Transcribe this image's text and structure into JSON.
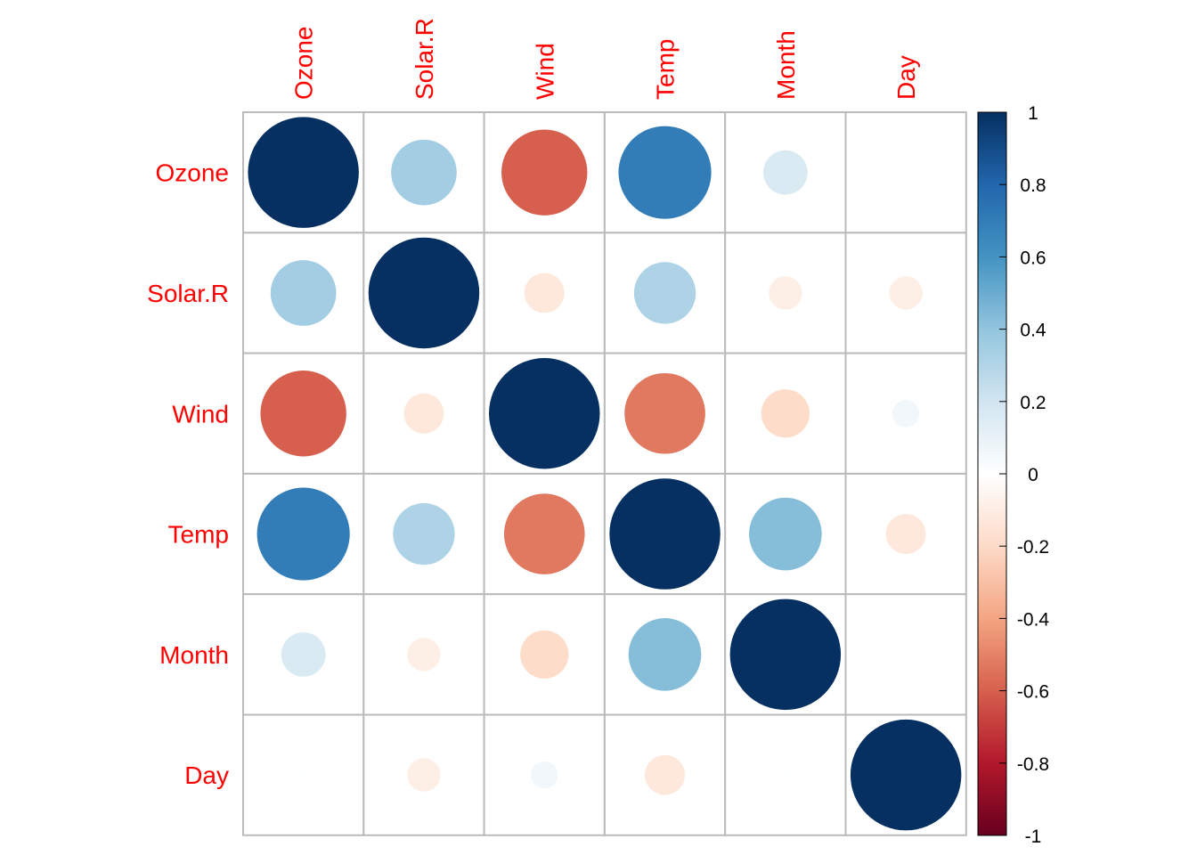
{
  "chart_data": {
    "type": "heatmap",
    "variables": [
      "Ozone",
      "Solar.R",
      "Wind",
      "Temp",
      "Month",
      "Day"
    ],
    "matrix": [
      [
        1.0,
        0.35,
        -0.6,
        0.7,
        0.16,
        0.01
      ],
      [
        0.35,
        1.0,
        -0.13,
        0.31,
        -0.09,
        -0.09
      ],
      [
        -0.6,
        -0.13,
        1.0,
        -0.53,
        -0.19,
        0.06
      ],
      [
        0.7,
        0.31,
        -0.53,
        1.0,
        0.43,
        -0.13
      ],
      [
        0.16,
        -0.09,
        -0.19,
        0.43,
        1.0,
        0.01
      ],
      [
        0.01,
        -0.09,
        0.06,
        -0.13,
        0.01,
        1.0
      ]
    ],
    "colorbar": {
      "range": [
        -1,
        1
      ],
      "ticks": [
        "1",
        "0.8",
        "0.6",
        "0.4",
        "0.2",
        "0",
        "-0.2",
        "-0.4",
        "-0.6",
        "-0.8",
        "-1"
      ],
      "tick_values": [
        1,
        0.8,
        0.6,
        0.4,
        0.2,
        0,
        -0.2,
        -0.4,
        -0.6,
        -0.8,
        -1
      ],
      "palette": [
        "#67001f",
        "#b2182b",
        "#d6604d",
        "#f4a582",
        "#fddbc7",
        "#ffffff",
        "#d1e5f0",
        "#92c5de",
        "#4393c3",
        "#2166ac",
        "#053061"
      ]
    },
    "label_color": "#ff0000",
    "grid_color": "#bbbbbb",
    "marker": "circle",
    "size_encodes": "absolute correlation"
  }
}
